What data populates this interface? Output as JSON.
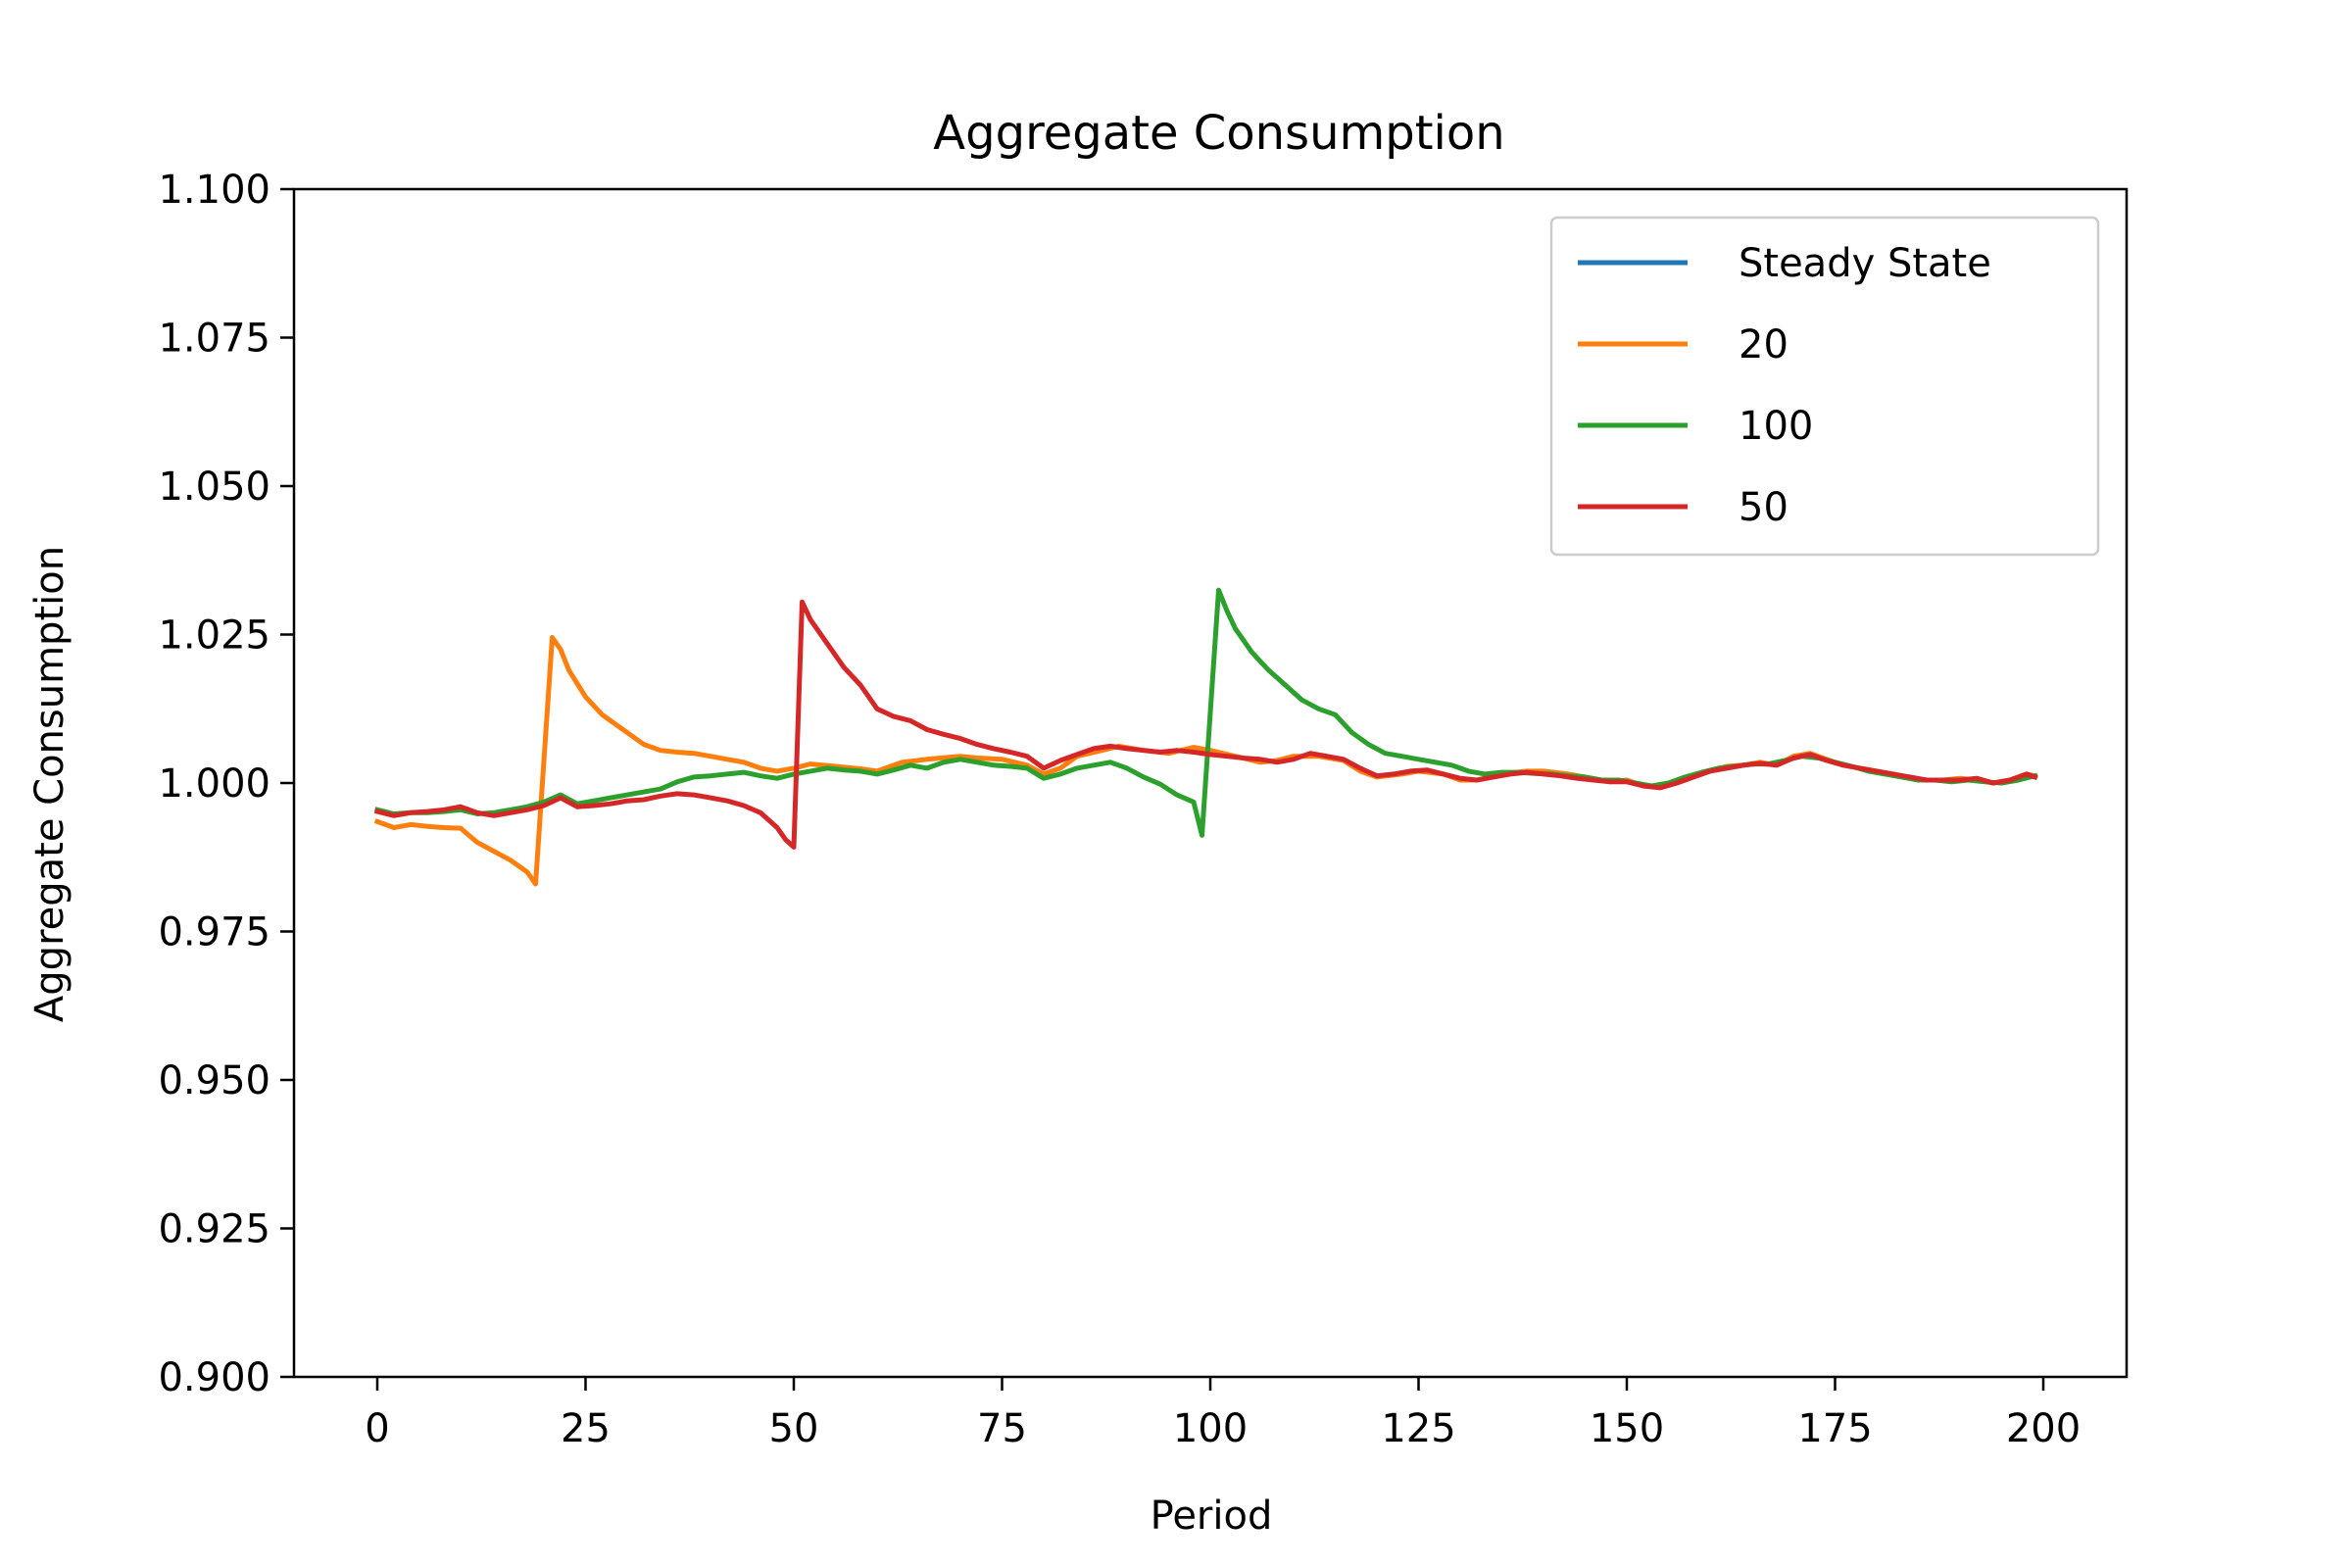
{
  "chart_data": {
    "type": "line",
    "title": "Aggregate Consumption",
    "xlabel": "Period",
    "ylabel": "Aggregate Consumption",
    "xlim": [
      -10,
      210
    ],
    "ylim": [
      0.9,
      1.1
    ],
    "xticks": [
      0,
      25,
      50,
      75,
      100,
      125,
      150,
      175,
      200
    ],
    "xtick_labels": [
      "0",
      "25",
      "50",
      "75",
      "100",
      "125",
      "150",
      "175",
      "200"
    ],
    "yticks": [
      0.9,
      0.925,
      0.95,
      0.975,
      1.0,
      1.025,
      1.05,
      1.075,
      1.1
    ],
    "ytick_labels": [
      "0.900",
      "0.925",
      "0.950",
      "0.975",
      "1.000",
      "1.025",
      "1.050",
      "1.075",
      "1.100"
    ],
    "grid": false,
    "legend_position": "top-right",
    "series": [
      {
        "name": "Steady State",
        "color": "#1f77b4",
        "points": []
      },
      {
        "name": "20",
        "color": "#ff7f0e",
        "points": [
          [
            0,
            0.9935
          ],
          [
            2,
            0.9925
          ],
          [
            4,
            0.993
          ],
          [
            6,
            0.9927
          ],
          [
            8,
            0.9925
          ],
          [
            10,
            0.9924
          ],
          [
            12,
            0.99
          ],
          [
            14,
            0.9885
          ],
          [
            16,
            0.987
          ],
          [
            18,
            0.985
          ],
          [
            19,
            0.983
          ],
          [
            21,
            1.0245
          ],
          [
            22,
            1.0225
          ],
          [
            23,
            1.019
          ],
          [
            25,
            1.0145
          ],
          [
            27,
            1.0115
          ],
          [
            30,
            1.0085
          ],
          [
            32,
            1.0065
          ],
          [
            34,
            1.0055
          ],
          [
            36,
            1.0052
          ],
          [
            38,
            1.005
          ],
          [
            40,
            1.0045
          ],
          [
            42,
            1.004
          ],
          [
            44,
            1.0035
          ],
          [
            46,
            1.0025
          ],
          [
            48,
            1.002
          ],
          [
            50,
            1.0025
          ],
          [
            52,
            1.0032
          ],
          [
            55,
            1.0028
          ],
          [
            58,
            1.0024
          ],
          [
            60,
            1.002
          ],
          [
            63,
            1.0035
          ],
          [
            66,
            1.004
          ],
          [
            70,
            1.0045
          ],
          [
            72,
            1.0042
          ],
          [
            75,
            1.004
          ],
          [
            78,
            1.003
          ],
          [
            80,
            1.0015
          ],
          [
            82,
            1.0025
          ],
          [
            84,
            1.0045
          ],
          [
            87,
            1.0055
          ],
          [
            89,
            1.0062
          ],
          [
            92,
            1.0055
          ],
          [
            95,
            1.005
          ],
          [
            98,
            1.006
          ],
          [
            100,
            1.0055
          ],
          [
            103,
            1.0045
          ],
          [
            106,
            1.0035
          ],
          [
            108,
            1.0038
          ],
          [
            110,
            1.0045
          ],
          [
            113,
            1.0045
          ],
          [
            116,
            1.0038
          ],
          [
            118,
            1.002
          ],
          [
            120,
            1.001
          ],
          [
            123,
            1.0015
          ],
          [
            125,
            1.002
          ],
          [
            128,
            1.0015
          ],
          [
            130,
            1.0005
          ],
          [
            132,
            1.0005
          ],
          [
            135,
            1.0015
          ],
          [
            138,
            1.002
          ],
          [
            140,
            1.002
          ],
          [
            143,
            1.0015
          ],
          [
            145,
            1.001
          ],
          [
            148,
            1.0002
          ],
          [
            150,
            1.0005
          ],
          [
            152,
            0.9995
          ],
          [
            154,
            0.9992
          ],
          [
            156,
            1.0
          ],
          [
            158,
            1.001
          ],
          [
            160,
            1.002
          ],
          [
            162,
            1.0028
          ],
          [
            164,
            1.003
          ],
          [
            166,
            1.0035
          ],
          [
            168,
            1.003
          ],
          [
            170,
            1.0045
          ],
          [
            172,
            1.005
          ],
          [
            174,
            1.004
          ],
          [
            176,
            1.003
          ],
          [
            178,
            1.0025
          ],
          [
            180,
            1.002
          ],
          [
            182,
            1.0015
          ],
          [
            184,
            1.0008
          ],
          [
            186,
            1.0005
          ],
          [
            188,
            1.0005
          ],
          [
            190,
            1.0008
          ],
          [
            192,
            1.0005
          ],
          [
            194,
            1.0
          ],
          [
            196,
            1.0005
          ],
          [
            198,
            1.0015
          ],
          [
            199,
            1.0012
          ]
        ]
      },
      {
        "name": "100",
        "color": "#2ca02c",
        "points": [
          [
            0,
            0.9955
          ],
          [
            2,
            0.9948
          ],
          [
            4,
            0.995
          ],
          [
            6,
            0.995
          ],
          [
            8,
            0.9952
          ],
          [
            10,
            0.9955
          ],
          [
            12,
            0.9948
          ],
          [
            14,
            0.995
          ],
          [
            16,
            0.9955
          ],
          [
            18,
            0.996
          ],
          [
            20,
            0.9968
          ],
          [
            22,
            0.998
          ],
          [
            24,
            0.9965
          ],
          [
            26,
            0.997
          ],
          [
            28,
            0.9975
          ],
          [
            30,
            0.998
          ],
          [
            32,
            0.9985
          ],
          [
            34,
            0.999
          ],
          [
            36,
            1.0002
          ],
          [
            38,
            1.001
          ],
          [
            40,
            1.0012
          ],
          [
            42,
            1.0015
          ],
          [
            44,
            1.0018
          ],
          [
            46,
            1.0012
          ],
          [
            48,
            1.0008
          ],
          [
            50,
            1.0015
          ],
          [
            52,
            1.002
          ],
          [
            54,
            1.0025
          ],
          [
            56,
            1.0022
          ],
          [
            58,
            1.002
          ],
          [
            60,
            1.0015
          ],
          [
            62,
            1.0022
          ],
          [
            64,
            1.003
          ],
          [
            66,
            1.0025
          ],
          [
            68,
            1.0035
          ],
          [
            70,
            1.004
          ],
          [
            72,
            1.0035
          ],
          [
            74,
            1.003
          ],
          [
            76,
            1.0028
          ],
          [
            78,
            1.0025
          ],
          [
            80,
            1.0008
          ],
          [
            82,
            1.0015
          ],
          [
            84,
            1.0025
          ],
          [
            86,
            1.003
          ],
          [
            88,
            1.0035
          ],
          [
            90,
            1.0025
          ],
          [
            92,
            1.001
          ],
          [
            94,
            0.9998
          ],
          [
            96,
            0.998
          ],
          [
            98,
            0.9968
          ],
          [
            99,
            0.9912
          ],
          [
            101,
            1.0325
          ],
          [
            102,
            1.029
          ],
          [
            103,
            1.026
          ],
          [
            105,
            1.022
          ],
          [
            107,
            1.019
          ],
          [
            109,
            1.0165
          ],
          [
            111,
            1.014
          ],
          [
            113,
            1.0125
          ],
          [
            115,
            1.0115
          ],
          [
            117,
            1.0085
          ],
          [
            119,
            1.0065
          ],
          [
            121,
            1.005
          ],
          [
            123,
            1.0045
          ],
          [
            125,
            1.004
          ],
          [
            127,
            1.0035
          ],
          [
            129,
            1.003
          ],
          [
            131,
            1.002
          ],
          [
            133,
            1.0015
          ],
          [
            135,
            1.0018
          ],
          [
            137,
            1.0018
          ],
          [
            139,
            1.0016
          ],
          [
            141,
            1.0015
          ],
          [
            143,
            1.0012
          ],
          [
            145,
            1.001
          ],
          [
            147,
            1.0005
          ],
          [
            149,
            1.0005
          ],
          [
            151,
            1.0
          ],
          [
            153,
            0.9995
          ],
          [
            155,
            1.0
          ],
          [
            157,
            1.001
          ],
          [
            159,
            1.0018
          ],
          [
            161,
            1.0025
          ],
          [
            163,
            1.0028
          ],
          [
            165,
            1.0032
          ],
          [
            167,
            1.0032
          ],
          [
            169,
            1.0038
          ],
          [
            171,
            1.0045
          ],
          [
            173,
            1.0042
          ],
          [
            175,
            1.0035
          ],
          [
            177,
            1.0028
          ],
          [
            179,
            1.002
          ],
          [
            181,
            1.0015
          ],
          [
            183,
            1.001
          ],
          [
            185,
            1.0005
          ],
          [
            187,
            1.0005
          ],
          [
            189,
            1.0002
          ],
          [
            191,
            1.0005
          ],
          [
            193,
            1.0002
          ],
          [
            195,
            1.0
          ],
          [
            197,
            1.0005
          ],
          [
            199,
            1.0012
          ]
        ]
      },
      {
        "name": "50",
        "color": "#d62728",
        "points": [
          [
            0,
            0.9952
          ],
          [
            2,
            0.9945
          ],
          [
            4,
            0.995
          ],
          [
            6,
            0.9952
          ],
          [
            8,
            0.9955
          ],
          [
            10,
            0.996
          ],
          [
            12,
            0.995
          ],
          [
            14,
            0.9945
          ],
          [
            16,
            0.995
          ],
          [
            18,
            0.9955
          ],
          [
            20,
            0.9962
          ],
          [
            22,
            0.9975
          ],
          [
            24,
            0.996
          ],
          [
            26,
            0.9962
          ],
          [
            28,
            0.9965
          ],
          [
            30,
            0.997
          ],
          [
            32,
            0.9972
          ],
          [
            34,
            0.9978
          ],
          [
            36,
            0.9982
          ],
          [
            38,
            0.998
          ],
          [
            40,
            0.9975
          ],
          [
            42,
            0.997
          ],
          [
            44,
            0.9962
          ],
          [
            46,
            0.995
          ],
          [
            48,
            0.9925
          ],
          [
            49,
            0.9905
          ],
          [
            50,
            0.9892
          ],
          [
            51,
            1.0305
          ],
          [
            52,
            1.0275
          ],
          [
            54,
            1.0235
          ],
          [
            56,
            1.0195
          ],
          [
            58,
            1.0165
          ],
          [
            60,
            1.0125
          ],
          [
            62,
            1.0112
          ],
          [
            64,
            1.0105
          ],
          [
            66,
            1.009
          ],
          [
            68,
            1.0082
          ],
          [
            70,
            1.0075
          ],
          [
            72,
            1.0065
          ],
          [
            74,
            1.0058
          ],
          [
            76,
            1.0052
          ],
          [
            78,
            1.0045
          ],
          [
            80,
            1.0025
          ],
          [
            82,
            1.0038
          ],
          [
            84,
            1.0048
          ],
          [
            86,
            1.0058
          ],
          [
            88,
            1.0062
          ],
          [
            90,
            1.0058
          ],
          [
            92,
            1.0055
          ],
          [
            94,
            1.0052
          ],
          [
            96,
            1.0055
          ],
          [
            98,
            1.0052
          ],
          [
            100,
            1.0048
          ],
          [
            102,
            1.0045
          ],
          [
            104,
            1.0042
          ],
          [
            106,
            1.004
          ],
          [
            108,
            1.0035
          ],
          [
            110,
            1.004
          ],
          [
            112,
            1.005
          ],
          [
            114,
            1.0045
          ],
          [
            116,
            1.004
          ],
          [
            118,
            1.0025
          ],
          [
            120,
            1.0012
          ],
          [
            122,
            1.0015
          ],
          [
            124,
            1.002
          ],
          [
            126,
            1.0022
          ],
          [
            128,
            1.0015
          ],
          [
            130,
            1.0008
          ],
          [
            132,
            1.0005
          ],
          [
            134,
            1.001
          ],
          [
            136,
            1.0015
          ],
          [
            138,
            1.0018
          ],
          [
            140,
            1.0015
          ],
          [
            142,
            1.0012
          ],
          [
            144,
            1.0008
          ],
          [
            146,
            1.0005
          ],
          [
            148,
            1.0002
          ],
          [
            150,
            1.0002
          ],
          [
            152,
            0.9995
          ],
          [
            154,
            0.9992
          ],
          [
            156,
            1.0
          ],
          [
            158,
            1.001
          ],
          [
            160,
            1.002
          ],
          [
            162,
            1.0025
          ],
          [
            164,
            1.003
          ],
          [
            166,
            1.0033
          ],
          [
            168,
            1.003
          ],
          [
            170,
            1.0042
          ],
          [
            172,
            1.0048
          ],
          [
            174,
            1.0038
          ],
          [
            176,
            1.003
          ],
          [
            178,
            1.0025
          ],
          [
            180,
            1.002
          ],
          [
            182,
            1.0015
          ],
          [
            184,
            1.001
          ],
          [
            186,
            1.0005
          ],
          [
            188,
            1.0005
          ],
          [
            190,
            1.0005
          ],
          [
            192,
            1.0008
          ],
          [
            194,
            1.0
          ],
          [
            196,
            1.0005
          ],
          [
            198,
            1.0015
          ],
          [
            199,
            1.001
          ]
        ]
      }
    ]
  }
}
